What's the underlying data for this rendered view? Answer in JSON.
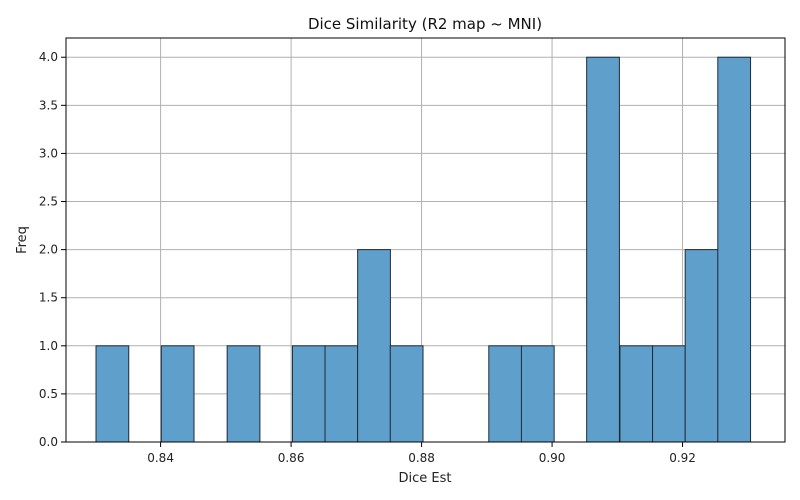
{
  "chart_data": {
    "type": "bar",
    "title": "Dice Similarity (R2 map ~ MNI)",
    "xlabel": "Dice Est",
    "ylabel": "Freq",
    "grid": true,
    "xlim": [
      0.8255,
      0.9357
    ],
    "ylim": [
      0,
      4.2
    ],
    "bin_width": 0.00502,
    "bins": [
      {
        "x0": 0.8301,
        "count": 1
      },
      {
        "x0": 0.8351,
        "count": 0
      },
      {
        "x0": 0.8401,
        "count": 1
      },
      {
        "x0": 0.8451,
        "count": 0
      },
      {
        "x0": 0.8502,
        "count": 1
      },
      {
        "x0": 0.8552,
        "count": 0
      },
      {
        "x0": 0.8602,
        "count": 1
      },
      {
        "x0": 0.8652,
        "count": 1
      },
      {
        "x0": 0.8702,
        "count": 2
      },
      {
        "x0": 0.8752,
        "count": 1
      },
      {
        "x0": 0.8803,
        "count": 0
      },
      {
        "x0": 0.8853,
        "count": 0
      },
      {
        "x0": 0.8903,
        "count": 1
      },
      {
        "x0": 0.8953,
        "count": 1
      },
      {
        "x0": 0.9003,
        "count": 0
      },
      {
        "x0": 0.9053,
        "count": 4
      },
      {
        "x0": 0.9104,
        "count": 1
      },
      {
        "x0": 0.9154,
        "count": 1
      },
      {
        "x0": 0.9204,
        "count": 2
      },
      {
        "x0": 0.9254,
        "count": 4
      }
    ],
    "x_ticks": [
      {
        "value": 0.84,
        "label": "0.84"
      },
      {
        "value": 0.86,
        "label": "0.86"
      },
      {
        "value": 0.88,
        "label": "0.88"
      },
      {
        "value": 0.9,
        "label": "0.90"
      },
      {
        "value": 0.92,
        "label": "0.92"
      }
    ],
    "y_ticks": [
      {
        "value": 0.0,
        "label": "0.0"
      },
      {
        "value": 0.5,
        "label": "0.5"
      },
      {
        "value": 1.0,
        "label": "1.0"
      },
      {
        "value": 1.5,
        "label": "1.5"
      },
      {
        "value": 2.0,
        "label": "2.0"
      },
      {
        "value": 2.5,
        "label": "2.5"
      },
      {
        "value": 3.0,
        "label": "3.0"
      },
      {
        "value": 3.5,
        "label": "3.5"
      },
      {
        "value": 4.0,
        "label": "4.0"
      }
    ],
    "colors": {
      "bar_fill": "#5f9fcc",
      "bar_edge": "#1f2a36",
      "grid": "#b0b0b0",
      "axis": "#000000"
    }
  }
}
